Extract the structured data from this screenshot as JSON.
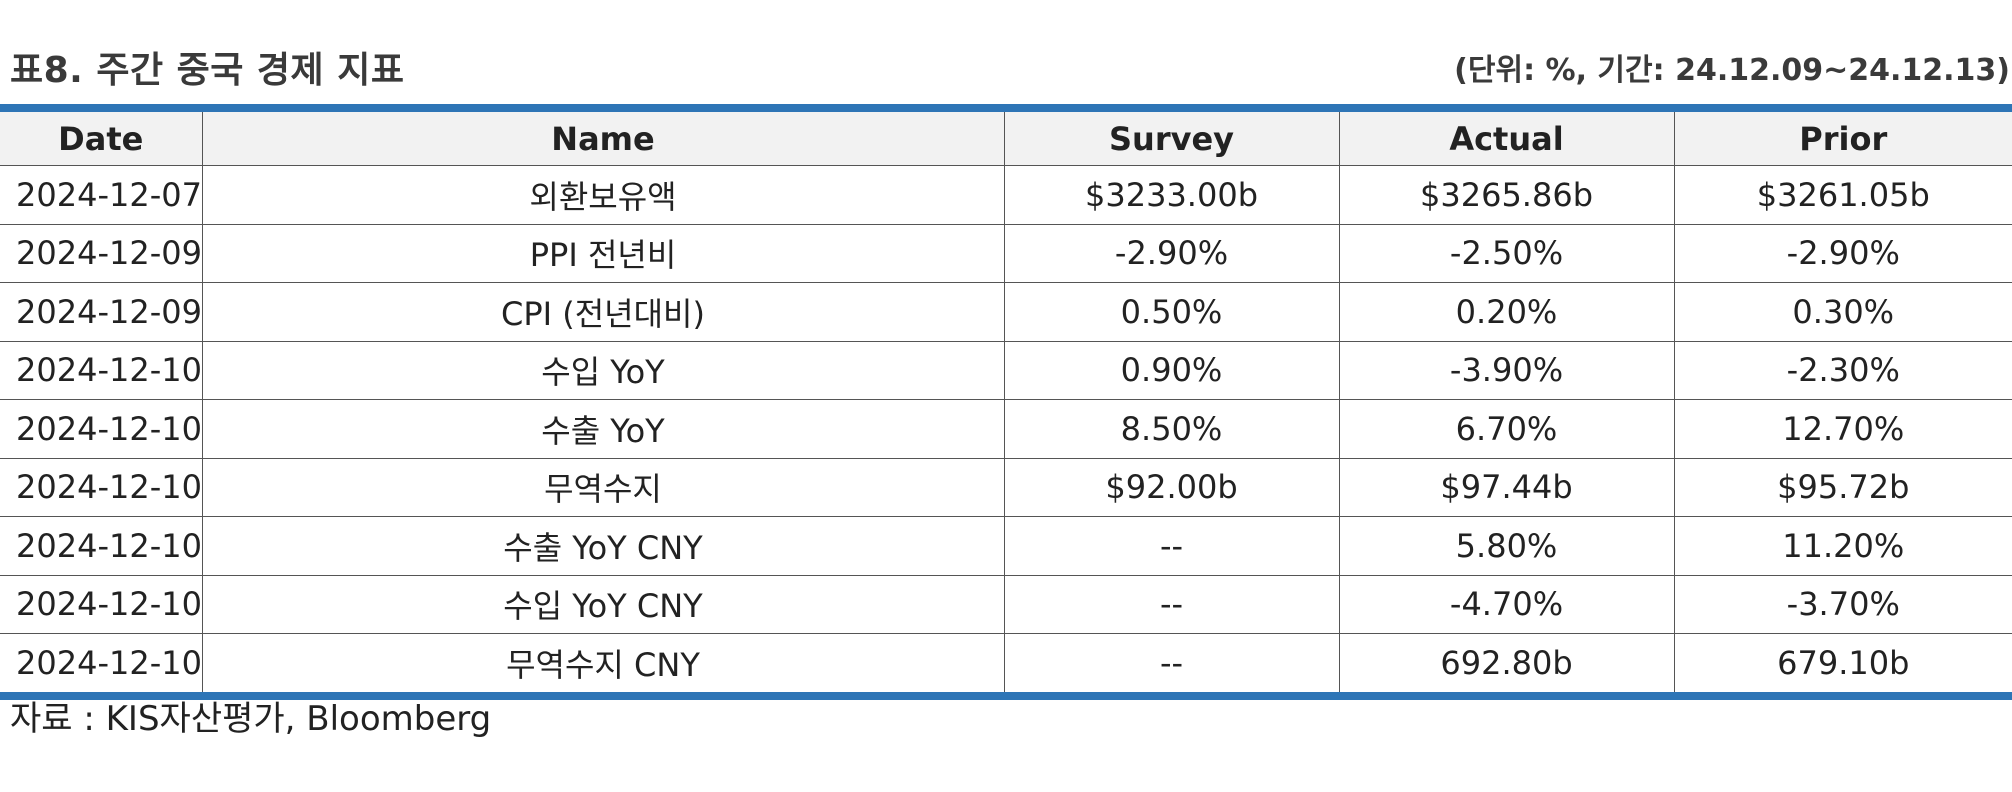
{
  "header": {
    "title": "표8. 주간 중국 경제 지표",
    "unit_note": "(단위: %, 기간: 24.12.09~24.12.13)"
  },
  "table": {
    "columns": [
      "Date",
      "Name",
      "Survey",
      "Actual",
      "Prior"
    ],
    "rows": [
      [
        "2024-12-07",
        "외환보유액",
        "$3233.00b",
        "$3265.86b",
        "$3261.05b"
      ],
      [
        "2024-12-09",
        "PPI 전년비",
        "-2.90%",
        "-2.50%",
        "-2.90%"
      ],
      [
        "2024-12-09",
        "CPI (전년대비)",
        "0.50%",
        "0.20%",
        "0.30%"
      ],
      [
        "2024-12-10",
        "수입 YoY",
        "0.90%",
        "-3.90%",
        "-2.30%"
      ],
      [
        "2024-12-10",
        "수출 YoY",
        "8.50%",
        "6.70%",
        "12.70%"
      ],
      [
        "2024-12-10",
        "무역수지",
        "$92.00b",
        "$97.44b",
        "$95.72b"
      ],
      [
        "2024-12-10",
        "수출 YoY CNY",
        "--",
        "5.80%",
        "11.20%"
      ],
      [
        "2024-12-10",
        "수입 YoY CNY",
        "--",
        "-4.70%",
        "-3.70%"
      ],
      [
        "2024-12-10",
        "무역수지 CNY",
        "--",
        "692.80b",
        "679.10b"
      ]
    ]
  },
  "footer": {
    "source": "자료 : KIS자산평가, Bloomberg"
  },
  "colors": {
    "accent_rule": "#2e75b6",
    "header_bg": "#f2f2f2",
    "grid": "#555555",
    "text": "#222222"
  }
}
